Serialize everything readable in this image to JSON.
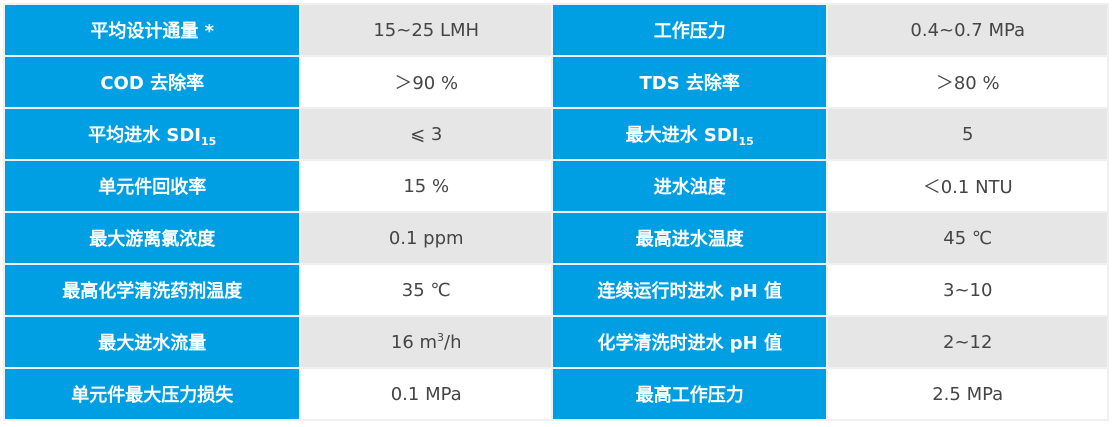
{
  "colors": {
    "label_bg": "#009fe3",
    "alt_row_bg": "#e6e6e6",
    "value_text": "#454545"
  },
  "rows": [
    {
      "l1": {
        "text": "平均设计通量 *"
      },
      "v1": {
        "text": "15~25 LMH"
      },
      "l2": {
        "text": "工作压力"
      },
      "v2": {
        "text": "0.4~0.7 MPa"
      }
    },
    {
      "l1": {
        "text": "COD 去除率"
      },
      "v1": {
        "text": "＞90 %"
      },
      "l2": {
        "text": "TDS 去除率"
      },
      "v2": {
        "text": "＞80 %"
      }
    },
    {
      "l1": {
        "text": "平均进水 SDI",
        "sub": "15"
      },
      "v1": {
        "text": "⩽ 3"
      },
      "l2": {
        "text": "最大进水 SDI",
        "sub": "15"
      },
      "v2": {
        "text": "5"
      }
    },
    {
      "l1": {
        "text": "单元件回收率"
      },
      "v1": {
        "text": "15 %"
      },
      "l2": {
        "text": "进水浊度"
      },
      "v2": {
        "text": "＜0.1 NTU"
      }
    },
    {
      "l1": {
        "text": "最大游离氯浓度"
      },
      "v1": {
        "text": "0.1 ppm"
      },
      "l2": {
        "text": "最高进水温度"
      },
      "v2": {
        "text": "45 ℃"
      }
    },
    {
      "l1": {
        "text": "最高化学清洗药剂温度"
      },
      "v1": {
        "text": "35 ℃"
      },
      "l2": {
        "text": "连续运行时进水 pH 值"
      },
      "v2": {
        "text": "3~10"
      }
    },
    {
      "l1": {
        "text": "最大进水流量"
      },
      "v1": {
        "text": "16 m",
        "sup": "3",
        "after": "/h"
      },
      "l2": {
        "text": "化学清洗时进水 pH 值"
      },
      "v2": {
        "text": "2~12"
      }
    },
    {
      "l1": {
        "text": "单元件最大压力损失"
      },
      "v1": {
        "text": "0.1 MPa"
      },
      "l2": {
        "text": "最高工作压力"
      },
      "v2": {
        "text": "2.5 MPa"
      }
    }
  ]
}
